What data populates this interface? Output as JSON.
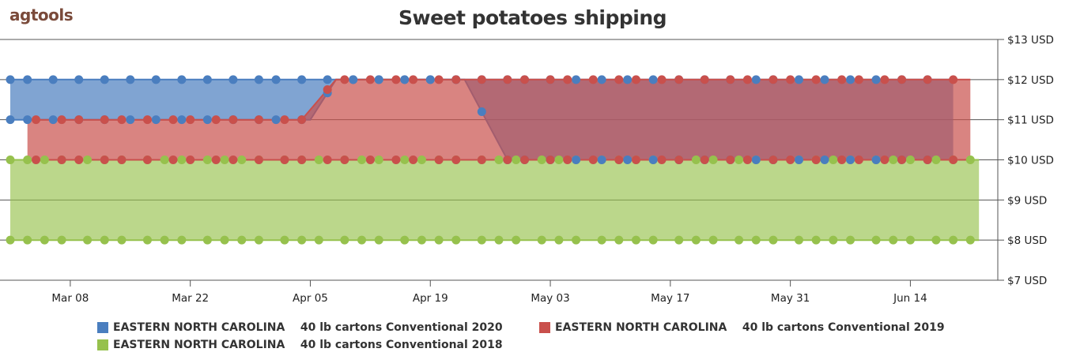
{
  "header": {
    "logo_text": "agtools",
    "title": "Sweet potatoes shipping"
  },
  "chart_data": {
    "type": "area",
    "title": "Sweet potatoes shipping",
    "x_ticks": [
      "Mar 08",
      "Mar 22",
      "Apr 05",
      "Apr 19",
      "May 03",
      "May 17",
      "May 31",
      "Jun 14"
    ],
    "y_ticks": [
      "$13 USD",
      "$12 USD",
      "$11 USD",
      "$10 USD",
      "$9 USD",
      "$8 USD",
      "$7 USD"
    ],
    "ylim": [
      7,
      13
    ],
    "x_range": [
      "2020-03-01",
      "2020-06-23"
    ],
    "series": [
      {
        "name": "EASTERN NORTH CAROLINA    40 lb cartons Conventional 2020",
        "color": "#4a7ebf",
        "fill": "rgba(74,126,191,0.70)",
        "high": [
          [
            "2020-03-01",
            12
          ],
          [
            "2020-04-01",
            12
          ],
          [
            "2020-04-05",
            12
          ],
          [
            "2020-04-09",
            12
          ],
          [
            "2020-04-15",
            12
          ],
          [
            "2020-05-01",
            12
          ],
          [
            "2020-05-20",
            12
          ],
          [
            "2020-06-01",
            12
          ],
          [
            "2020-06-19",
            12
          ]
        ],
        "low": [
          [
            "2020-03-01",
            11
          ],
          [
            "2020-03-10",
            11
          ],
          [
            "2020-03-20",
            11
          ],
          [
            "2020-04-01",
            11
          ],
          [
            "2020-04-05",
            11
          ],
          [
            "2020-04-08",
            12
          ],
          [
            "2020-04-23",
            12
          ],
          [
            "2020-04-28",
            10
          ],
          [
            "2020-05-01",
            10
          ],
          [
            "2020-05-20",
            10
          ],
          [
            "2020-06-01",
            10
          ],
          [
            "2020-06-19",
            10
          ]
        ]
      },
      {
        "name": "EASTERN NORTH CAROLINA    40 lb cartons Conventional 2019",
        "color": "#c9504c",
        "fill": "rgba(201,80,76,0.70)",
        "high": [
          [
            "2020-03-03",
            11
          ],
          [
            "2020-03-20",
            11
          ],
          [
            "2020-04-04",
            11
          ],
          [
            "2020-04-08",
            12
          ],
          [
            "2020-04-20",
            12
          ],
          [
            "2020-05-01",
            12
          ],
          [
            "2020-05-20",
            12
          ],
          [
            "2020-06-05",
            12
          ],
          [
            "2020-06-21",
            12
          ]
        ],
        "low": [
          [
            "2020-03-03",
            10
          ],
          [
            "2020-04-01",
            10
          ],
          [
            "2020-05-01",
            10
          ],
          [
            "2020-06-01",
            10
          ],
          [
            "2020-06-21",
            10
          ]
        ]
      },
      {
        "name": "EASTERN NORTH CAROLINA    40 lb cartons Conventional 2018",
        "color": "#96c14d",
        "fill": "rgba(150,193,77,0.65)",
        "high": [
          [
            "2020-03-01",
            10
          ],
          [
            "2020-04-01",
            10
          ],
          [
            "2020-05-01",
            10
          ],
          [
            "2020-06-01",
            10
          ],
          [
            "2020-06-22",
            10
          ]
        ],
        "low": [
          [
            "2020-03-01",
            8
          ],
          [
            "2020-04-01",
            8
          ],
          [
            "2020-05-01",
            8
          ],
          [
            "2020-06-01",
            8
          ],
          [
            "2020-06-22",
            8
          ]
        ]
      }
    ],
    "grid": true,
    "legend_position": "bottom"
  },
  "legend": [
    {
      "label": "EASTERN NORTH CAROLINA    40 lb cartons Conventional 2020",
      "color": "#4a7ebf"
    },
    {
      "label": "EASTERN NORTH CAROLINA    40 lb cartons Conventional 2019",
      "color": "#c9504c"
    },
    {
      "label": "EASTERN NORTH CAROLINA    40 lb cartons Conventional 2018",
      "color": "#96c14d"
    }
  ]
}
